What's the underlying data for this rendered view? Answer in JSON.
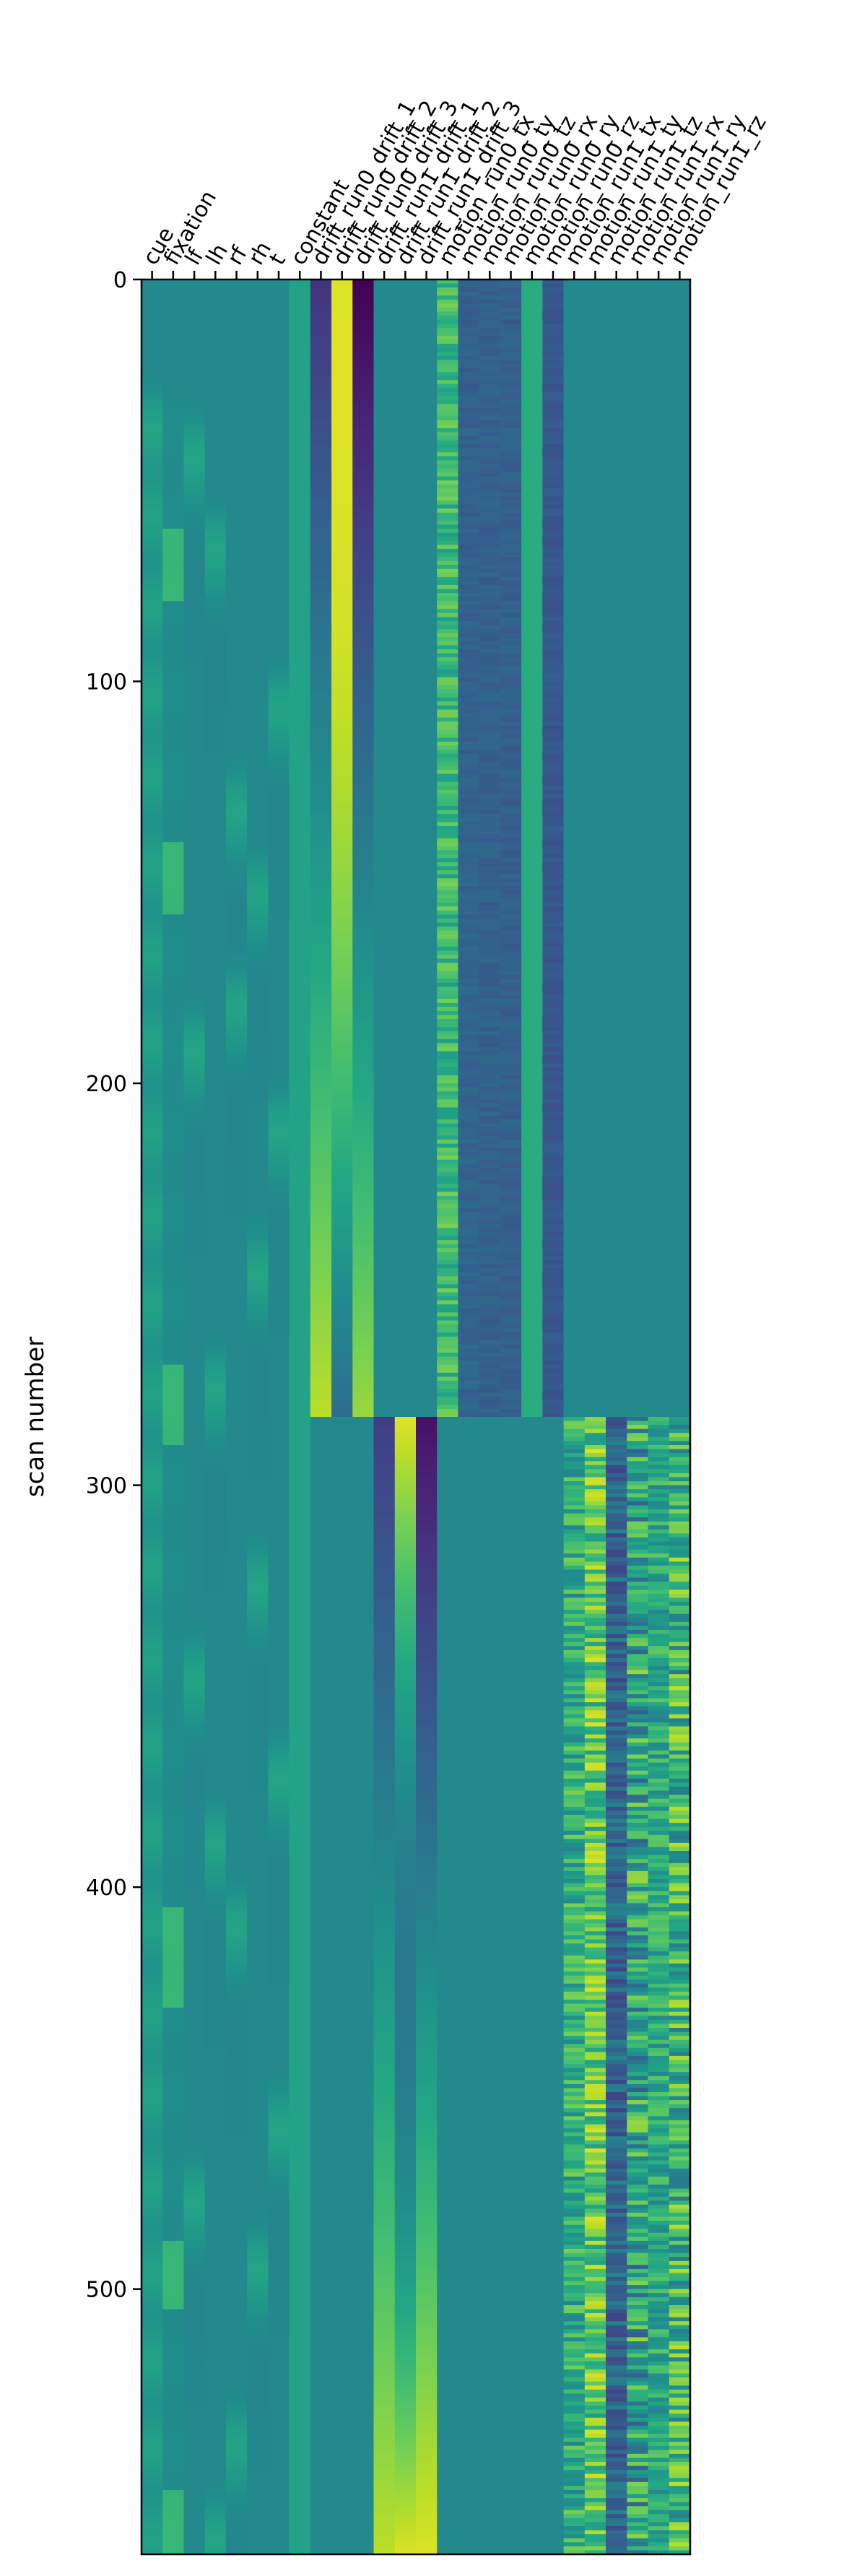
{
  "chart_data": {
    "type": "heatmap",
    "title": "",
    "xlabel": "",
    "ylabel": "scan number",
    "colormap": "viridis",
    "color_range": [
      0,
      1
    ],
    "n_scans": 566,
    "y_ticks": [
      0,
      100,
      200,
      300,
      400,
      500
    ],
    "ylim": [
      566,
      0
    ],
    "grid": false,
    "legend": "none",
    "run_boundary_scan": 283,
    "columns": [
      "cue",
      "fixation",
      "lf",
      "lh",
      "rf",
      "rh",
      "t",
      "constant",
      "drift_run0_drift_1",
      "drift_run0_drift_2",
      "drift_run0_drift_3",
      "drift_run1_drift_1",
      "drift_run1_drift_2",
      "drift_run1_drift_3",
      "motion_run0_tx",
      "motion_run0_ty",
      "motion_run0_tz",
      "motion_run0_rx",
      "motion_run0_ry",
      "motion_run0_rz",
      "motion_run1_tx",
      "motion_run1_ty",
      "motion_run1_tz",
      "motion_run1_rx",
      "motion_run1_ry",
      "motion_run1_rz"
    ],
    "column_labels_shown": [
      "cue",
      "fixation",
      "lf",
      "lh",
      "rf",
      "rh",
      "t",
      "constant",
      "drift_run0_drift_1",
      "drift_run0_drift_2",
      "drift_run0_drift_3",
      "drift_run1_drift_1",
      "drift_run1_drift_2",
      "drift_run1_drift_3",
      "motion_run0_tx",
      "motion_run0_ty",
      "motion_run0_tz",
      "motion_run0_rx",
      "motion_run0_ry",
      "motion_run0_rz",
      "motion_run1_tx",
      "motion_run1_ty",
      "motion_run1_tz",
      "motion_run1_rx",
      "motion_run1_ry",
      "motion_run1_rz"
    ],
    "regressors": {
      "event_onsets": {
        "cue": [
          18,
          40,
          62,
          84,
          105,
          127,
          149,
          171,
          193,
          214,
          236,
          258,
          280,
          302,
          324,
          346,
          368,
          390,
          412,
          433,
          455,
          477,
          499,
          521,
          543
        ],
        "lf": [
          25,
          173,
          329,
          459
        ],
        "lh": [
          48,
          257,
          370,
          543
        ],
        "rf": [
          113,
          391,
          520,
          162
        ],
        "rh": [
          134,
          228,
          306,
          476
        ],
        "t": [
          88,
          193,
          354,
          441
        ]
      },
      "fixation_blocks": [
        [
          62,
          80
        ],
        [
          140,
          158
        ],
        [
          270,
          290
        ],
        [
          405,
          430
        ],
        [
          488,
          505
        ],
        [
          550,
          566
        ]
      ],
      "event_duration_scans": 12
    }
  }
}
